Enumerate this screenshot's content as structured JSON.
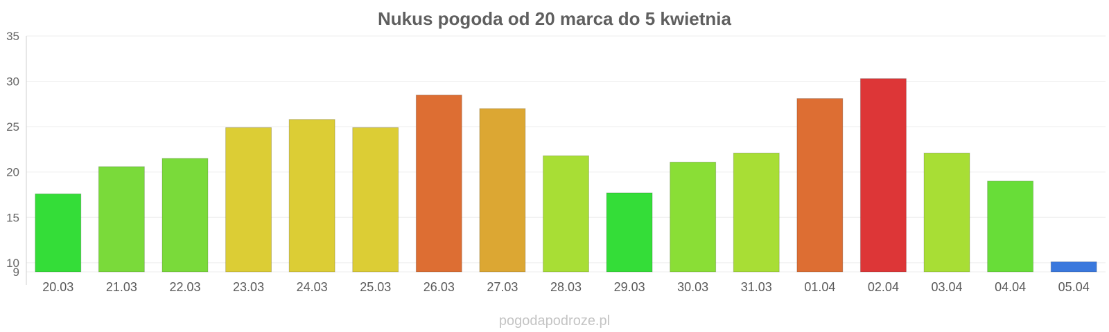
{
  "chart_data": {
    "type": "bar",
    "title": "Nukus pogoda od 20 marca do 5 kwietnia",
    "xlabel": "",
    "ylabel": "",
    "ylim": [
      9,
      35
    ],
    "yticks": [
      35,
      30,
      25,
      20,
      15,
      10,
      9
    ],
    "grid": true,
    "legend": "none",
    "categories": [
      "20.03",
      "21.03",
      "22.03",
      "23.03",
      "24.03",
      "25.03",
      "26.03",
      "27.03",
      "28.03",
      "29.03",
      "30.03",
      "31.03",
      "01.04",
      "02.04",
      "03.04",
      "04.04",
      "05.04"
    ],
    "values": [
      17.6,
      20.6,
      21.5,
      24.9,
      25.8,
      24.9,
      28.5,
      27.0,
      21.8,
      17.7,
      21.1,
      22.1,
      28.1,
      30.3,
      22.1,
      19.0,
      10.1
    ],
    "colors": [
      "#34dd38",
      "#7ada3a",
      "#7ada3a",
      "#dccd35",
      "#dccd35",
      "#dccd35",
      "#dd6e33",
      "#dca733",
      "#a8de35",
      "#34dd38",
      "#8ade36",
      "#a8de35",
      "#dd6e33",
      "#dd3637",
      "#a8de35",
      "#68dd38",
      "#3a78dd"
    ]
  },
  "footer": {
    "watermark": "pogodapodroze.pl"
  }
}
